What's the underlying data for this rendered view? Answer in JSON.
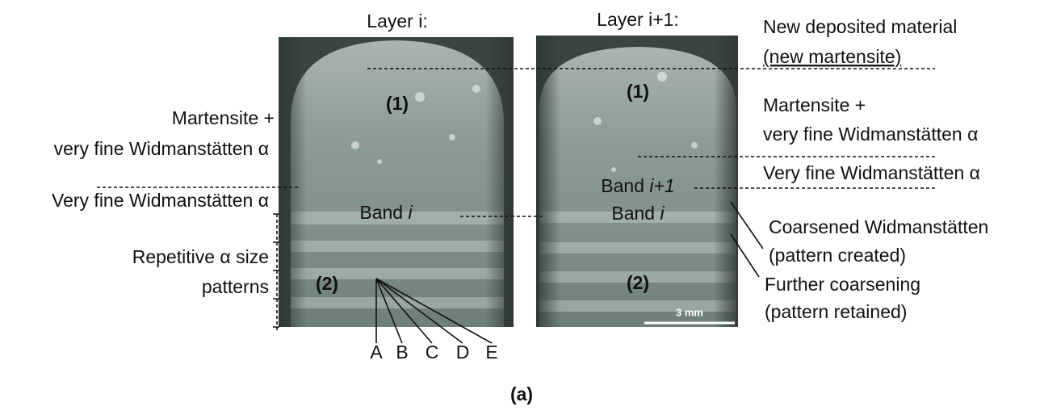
{
  "figure": {
    "caption": "(a)",
    "left": {
      "title": "Layer i:",
      "zone1": "(1)",
      "zone2": "(2)",
      "band": {
        "word": "Band",
        "index": "i"
      },
      "annotations": [
        "Martensite +",
        "very fine Widmanstätten α",
        "Very fine Widmanstätten α",
        "Repetitive α size",
        "patterns"
      ],
      "pattern_letters": [
        "A",
        "B",
        "C",
        "D",
        "E"
      ]
    },
    "right": {
      "title": "Layer i+1:",
      "zone1": "(1)",
      "zone2": "(2)",
      "band_new": {
        "word": "Band",
        "index": "i+1"
      },
      "band_old": {
        "word": "Band",
        "index": "i"
      },
      "scale_bar": "3 mm",
      "annotations": [
        "New deposited material",
        "(new martensite)",
        "Martensite +",
        "very fine Widmanstätten α",
        "Very fine Widmanstätten α",
        "Coarsened Widmanstätten",
        "(pattern created)",
        "Further coarsening",
        "(pattern retained)"
      ]
    }
  }
}
